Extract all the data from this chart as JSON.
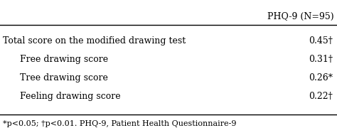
{
  "header_col": "PHQ-9 (N=95)",
  "rows": [
    {
      "label": "Total score on the modified drawing test",
      "value": "0.45†",
      "indent": false
    },
    {
      "label": "Free drawing score",
      "value": "0.31†",
      "indent": true
    },
    {
      "label": "Tree drawing score",
      "value": "0.26*",
      "indent": true
    },
    {
      "label": "Feeling drawing score",
      "value": "0.22†",
      "indent": true
    }
  ],
  "footnote": "*p<0.05; †p<0.01. PHQ-9, Patient Health Questionnaire-9",
  "bg_color": "#ffffff",
  "text_color": "#000000",
  "font_size": 9.0,
  "header_font_size": 9.0,
  "footnote_font_size": 8.0,
  "line_color": "#000000",
  "line_width": 1.0
}
